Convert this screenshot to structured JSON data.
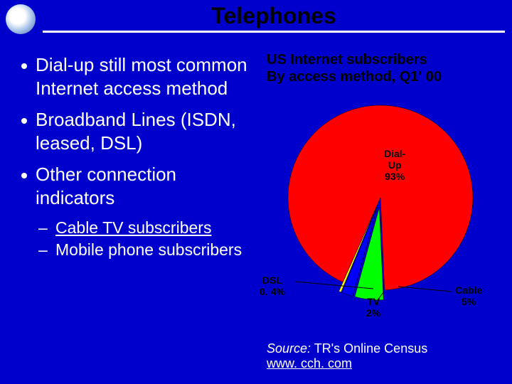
{
  "slide": {
    "background_color": "#0000cc",
    "title": "Telephones",
    "title_fontsize": 32,
    "title_color": "#000000",
    "bullets": [
      "Dial-up still most common Internet access method",
      "Broadband Lines (ISDN, leased, DSL)",
      "Other connection indicators"
    ],
    "bullet_fontsize": 26,
    "sub_bullets": [
      "Cable TV subscribers",
      "Mobile phone subscribers"
    ],
    "sub_bullet_fontsize": 23,
    "text_color": "#ffffff"
  },
  "chart": {
    "type": "pie",
    "title_line1": "US Internet subscribers",
    "title_line2": "By access method, Q1' 00",
    "title_fontsize": 20,
    "title_color": "#000000",
    "slices": [
      {
        "name": "Dial-Up",
        "value": 93,
        "color": "#ff0000",
        "label": "Dial-\nUp\n93%"
      },
      {
        "name": "Cable",
        "value": 5,
        "color": "#00ff00",
        "label": "Cable\n5%"
      },
      {
        "name": "TV",
        "value": 2,
        "color": "#0000ff",
        "label": "TV\n2%"
      },
      {
        "name": "DSL",
        "value": 0.4,
        "color": "#ffff00",
        "label": "DSL\n0. 4%"
      }
    ],
    "label_fontsize": 14,
    "label_color": "#000000",
    "radius": 130,
    "pull_out": 14,
    "start_angle_deg": 114
  },
  "source": {
    "lead": "Source:",
    "text": " TR's Online Census",
    "link": "www. cch. com",
    "fontsize": 18
  }
}
